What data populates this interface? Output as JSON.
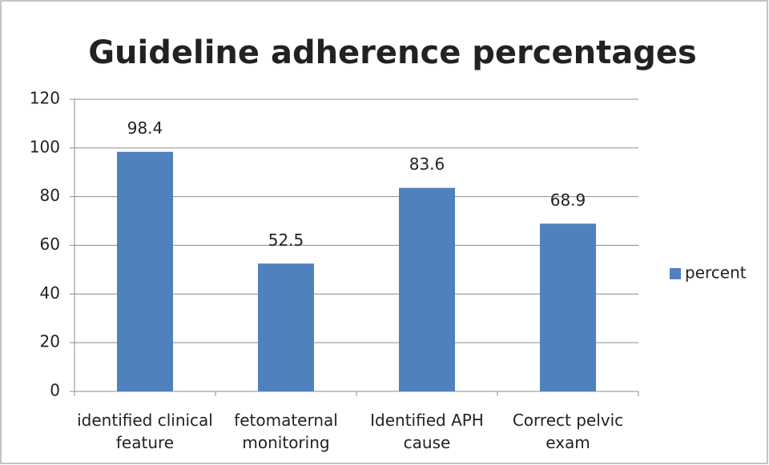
{
  "chart_data": {
    "type": "bar",
    "title": "Guideline adherence percentages",
    "categories": [
      "identified clinical feature",
      "fetomaternal monitoring",
      "Identified APH cause",
      "Correct pelvic exam"
    ],
    "series": [
      {
        "name": "percent",
        "color": "#4f81bd",
        "values": [
          98.4,
          52.5,
          83.6,
          68.9
        ]
      }
    ],
    "ylim": [
      0,
      120
    ],
    "yticks": [
      0,
      20,
      40,
      60,
      80,
      100,
      120
    ],
    "grid": true,
    "legend": "right"
  }
}
